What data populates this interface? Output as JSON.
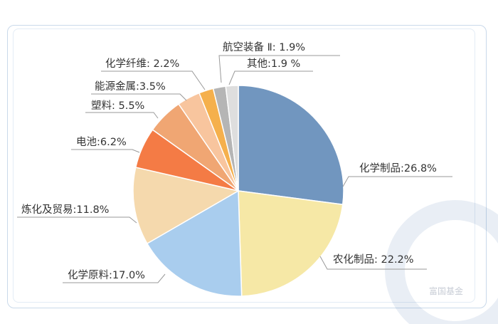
{
  "chart_data": {
    "type": "pie",
    "start": "top",
    "direction": "clockwise",
    "slices": [
      {
        "label": "化学制品:26.8%",
        "value": 26.8,
        "color": "#7196bf"
      },
      {
        "label": "农化制品: 22.2%",
        "value": 22.2,
        "color": "#f6e8a6"
      },
      {
        "label": "化学原料:17.0%",
        "value": 17.0,
        "color": "#a9cdee"
      },
      {
        "label": "炼化及贸易:11.8%",
        "value": 11.8,
        "color": "#f5d9ad"
      },
      {
        "label": "电池:6.2%",
        "value": 6.2,
        "color": "#f47b45"
      },
      {
        "label": "塑料: 5.5%",
        "value": 5.5,
        "color": "#f0a673"
      },
      {
        "label": "能源金属:3.5%",
        "value": 3.5,
        "color": "#f8c59e"
      },
      {
        "label": "化学纤维: 2.2%",
        "value": 2.2,
        "color": "#f5b04c"
      },
      {
        "label": "航空装备 Ⅱ: 1.9%",
        "value": 1.9,
        "color": "#b5b5b5"
      },
      {
        "label": "其他:1.9 %",
        "value": 1.9,
        "color": "#dedede"
      }
    ]
  },
  "watermark": "富国基金"
}
